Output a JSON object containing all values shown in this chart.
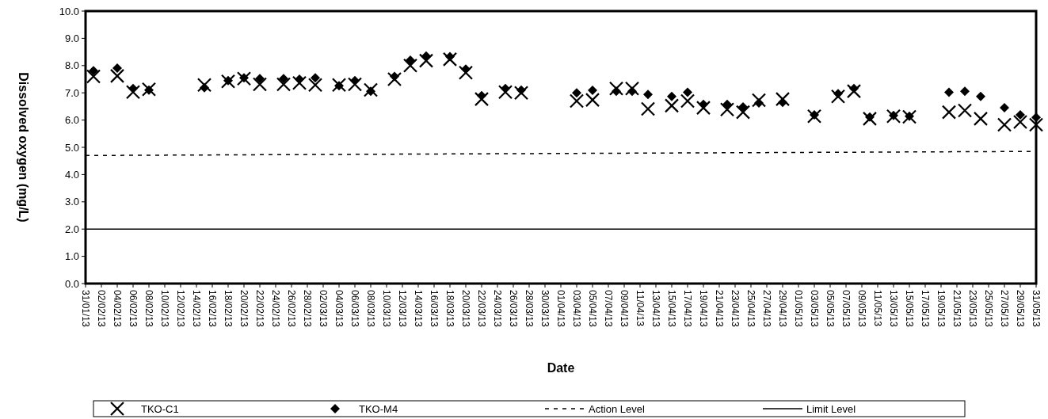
{
  "chart_data": {
    "type": "scatter",
    "xlabel": "Date",
    "ylabel": "Dissolved oxygen (mg/L)",
    "legend": "bottom",
    "xlim": [
      "--01-31",
      "--05-31"
    ],
    "ylim": [
      0,
      10
    ],
    "yticks": [
      {
        "value": 0,
        "label": "0.0"
      },
      {
        "value": 1,
        "label": "1.0"
      },
      {
        "value": 2,
        "label": "2.0"
      },
      {
        "value": 3,
        "label": "3.0"
      },
      {
        "value": 4,
        "label": "4.0"
      },
      {
        "value": 5,
        "label": "5.0"
      },
      {
        "value": 6,
        "label": "6.0"
      },
      {
        "value": 7,
        "label": "7.0"
      },
      {
        "value": 8,
        "label": "8.0"
      },
      {
        "value": 9,
        "label": "9.0"
      },
      {
        "value": 10,
        "label": "10.0"
      }
    ],
    "xticks": [
      {
        "value": "--01-31",
        "label": "31/01/13"
      },
      {
        "value": "--02-02",
        "label": "02/02/13"
      },
      {
        "value": "--02-04",
        "label": "04/02/13"
      },
      {
        "value": "--02-06",
        "label": "06/02/13"
      },
      {
        "value": "--02-08",
        "label": "08/02/13"
      },
      {
        "value": "--02-10",
        "label": "10/02/13"
      },
      {
        "value": "--02-12",
        "label": "12/02/13"
      },
      {
        "value": "--02-14",
        "label": "14/02/13"
      },
      {
        "value": "--02-16",
        "label": "16/02/13"
      },
      {
        "value": "--02-18",
        "label": "18/02/13"
      },
      {
        "value": "--02-20",
        "label": "20/02/13"
      },
      {
        "value": "--02-22",
        "label": "22/02/13"
      },
      {
        "value": "--02-24",
        "label": "24/02/13"
      },
      {
        "value": "--02-26",
        "label": "26/02/13"
      },
      {
        "value": "--02-28",
        "label": "28/02/13"
      },
      {
        "value": "--03-02",
        "label": "02/03/13"
      },
      {
        "value": "--03-04",
        "label": "04/03/13"
      },
      {
        "value": "--03-06",
        "label": "06/03/13"
      },
      {
        "value": "--03-08",
        "label": "08/03/13"
      },
      {
        "value": "--03-10",
        "label": "10/03/13"
      },
      {
        "value": "--03-12",
        "label": "12/03/13"
      },
      {
        "value": "--03-14",
        "label": "14/03/13"
      },
      {
        "value": "--03-16",
        "label": "16/03/13"
      },
      {
        "value": "--03-18",
        "label": "18/03/13"
      },
      {
        "value": "--03-20",
        "label": "20/03/13"
      },
      {
        "value": "--03-22",
        "label": "22/03/13"
      },
      {
        "value": "--03-24",
        "label": "24/03/13"
      },
      {
        "value": "--03-26",
        "label": "26/03/13"
      },
      {
        "value": "--03-28",
        "label": "28/03/13"
      },
      {
        "value": "--03-30",
        "label": "30/03/13"
      },
      {
        "value": "--04-01",
        "label": "01/04/13"
      },
      {
        "value": "--04-03",
        "label": "03/04/13"
      },
      {
        "value": "--04-05",
        "label": "05/04/13"
      },
      {
        "value": "--04-07",
        "label": "07/04/13"
      },
      {
        "value": "--04-09",
        "label": "09/04/13"
      },
      {
        "value": "--04-11",
        "label": "11/04/13"
      },
      {
        "value": "--04-13",
        "label": "13/04/13"
      },
      {
        "value": "--04-15",
        "label": "15/04/13"
      },
      {
        "value": "--04-17",
        "label": "17/04/13"
      },
      {
        "value": "--04-19",
        "label": "19/04/13"
      },
      {
        "value": "--04-21",
        "label": "21/04/13"
      },
      {
        "value": "--04-23",
        "label": "23/04/13"
      },
      {
        "value": "--04-25",
        "label": "25/04/13"
      },
      {
        "value": "--04-27",
        "label": "27/04/13"
      },
      {
        "value": "--04-29",
        "label": "29/04/13"
      },
      {
        "value": "--05-01",
        "label": "01/05/13"
      },
      {
        "value": "--05-03",
        "label": "03/05/13"
      },
      {
        "value": "--05-05",
        "label": "05/05/13"
      },
      {
        "value": "--05-07",
        "label": "07/05/13"
      },
      {
        "value": "--05-09",
        "label": "09/05/13"
      },
      {
        "value": "--05-11",
        "label": "11/05/13"
      },
      {
        "value": "--05-13",
        "label": "13/05/13"
      },
      {
        "value": "--05-15",
        "label": "15/05/13"
      },
      {
        "value": "--05-17",
        "label": "17/05/13"
      },
      {
        "value": "--05-19",
        "label": "19/05/13"
      },
      {
        "value": "--05-21",
        "label": "21/05/13"
      },
      {
        "value": "--05-23",
        "label": "23/05/13"
      },
      {
        "value": "--05-25",
        "label": "25/05/13"
      },
      {
        "value": "--05-27",
        "label": "27/05/13"
      },
      {
        "value": "--05-29",
        "label": "29/05/13"
      },
      {
        "value": "--05-31",
        "label": "31/05/13"
      }
    ],
    "x": [
      "--02-01",
      "--02-04",
      "--02-06",
      "--02-08",
      "--02-15",
      "--02-18",
      "--02-20",
      "--02-22",
      "--02-25",
      "--02-27",
      "--03-01",
      "--03-04",
      "--03-06",
      "--03-08",
      "--03-11",
      "--03-13",
      "--03-15",
      "--03-18",
      "--03-20",
      "--03-22",
      "--03-25",
      "--03-27",
      "--04-03",
      "--04-05",
      "--04-08",
      "--04-10",
      "--04-12",
      "--04-15",
      "--04-17",
      "--04-19",
      "--04-22",
      "--04-24",
      "--04-26",
      "--04-29",
      "--05-03",
      "--05-06",
      "--05-08",
      "--05-10",
      "--05-13",
      "--05-15",
      "--05-20",
      "--05-22",
      "--05-24",
      "--05-27",
      "--05-29",
      "--05-31"
    ],
    "series": [
      {
        "name": "TKO-C1",
        "marker": "cross",
        "color": "#000000",
        "values": [
          7.6,
          7.62,
          7.03,
          7.13,
          7.29,
          7.42,
          7.52,
          7.31,
          7.31,
          7.36,
          7.29,
          7.29,
          7.31,
          7.11,
          7.5,
          8.0,
          8.18,
          8.23,
          7.74,
          6.77,
          7.03,
          7.0,
          6.7,
          6.74,
          7.16,
          7.16,
          6.41,
          6.53,
          6.7,
          6.45,
          6.39,
          6.29,
          6.73,
          6.77,
          6.14,
          6.87,
          7.06,
          6.05,
          6.14,
          6.12,
          6.29,
          6.35,
          6.05,
          5.83,
          5.93,
          5.83
        ]
      },
      {
        "name": "TKO-M4",
        "marker": "diamond",
        "color": "#000000",
        "values": [
          7.81,
          7.91,
          7.16,
          7.1,
          7.19,
          7.45,
          7.55,
          7.52,
          7.52,
          7.5,
          7.55,
          7.26,
          7.45,
          7.06,
          7.6,
          8.2,
          8.35,
          8.33,
          7.87,
          6.9,
          7.16,
          7.1,
          7.0,
          7.09,
          7.06,
          7.06,
          6.94,
          6.87,
          7.02,
          6.58,
          6.58,
          6.48,
          6.63,
          6.65,
          6.19,
          6.97,
          7.16,
          6.11,
          6.17,
          6.14,
          7.02,
          7.06,
          6.87,
          6.45,
          6.19,
          6.1
        ]
      },
      {
        "name": "Action Level",
        "type": "line",
        "marker": "none",
        "line_style": "dashed",
        "color": "#000000",
        "x": [
          "--01-31",
          "--05-31"
        ],
        "values": [
          4.7,
          4.85
        ]
      },
      {
        "name": "Limit Level",
        "type": "line",
        "marker": "none",
        "line_style": "solid",
        "color": "#000000",
        "x": [
          "--01-31",
          "--05-31"
        ],
        "values": [
          2.0,
          2.0
        ]
      }
    ]
  }
}
